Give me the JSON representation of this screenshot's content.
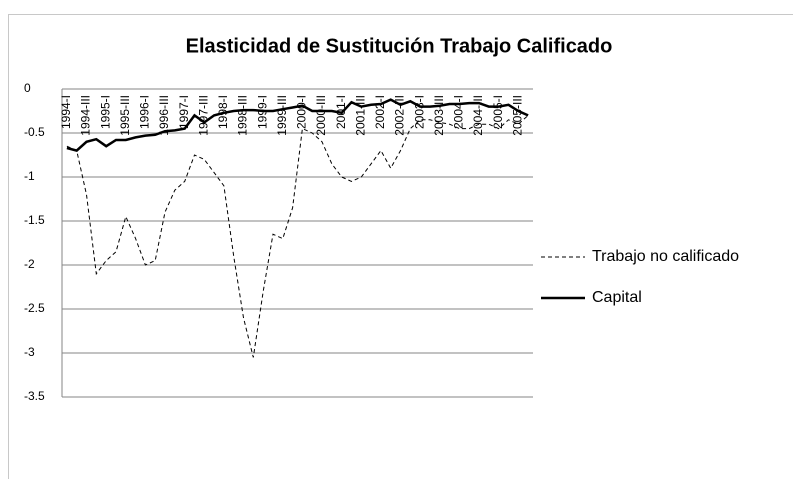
{
  "chart_data": {
    "type": "line",
    "title": "Elasticidad de Sustitución Trabajo Calificado",
    "categories": [
      "1994-I",
      null,
      "1994-III",
      null,
      "1995-I",
      null,
      "1995-III",
      null,
      "1996-I",
      null,
      "1996-III",
      null,
      "1997-I",
      null,
      "1997-III",
      null,
      "1998-I",
      null,
      "1998-III",
      null,
      "1999-I",
      null,
      "1999-III",
      null,
      "2000-I",
      null,
      "2000-III",
      null,
      "2001-I",
      null,
      "2001-III",
      null,
      "2002-I",
      null,
      "2002-III",
      null,
      "2003-I",
      null,
      "2003-III",
      null,
      "2004-I",
      null,
      "2004-III",
      null,
      "2005-I",
      null,
      "2005-III",
      null
    ],
    "series": [
      {
        "name": "Trabajo no calificado",
        "color": "#000000",
        "style": "dashed",
        "values": [
          -0.65,
          -0.7,
          -1.2,
          -2.1,
          -1.95,
          -1.85,
          -1.45,
          -1.7,
          -2.0,
          -1.95,
          -1.4,
          -1.15,
          -1.05,
          -0.75,
          -0.8,
          -0.95,
          -1.1,
          -1.9,
          -2.6,
          -3.05,
          -2.3,
          -1.65,
          -1.7,
          -1.35,
          -0.45,
          -0.5,
          -0.6,
          -0.85,
          -1.0,
          -1.05,
          -1.0,
          -0.85,
          -0.7,
          -0.9,
          -0.7,
          -0.45,
          -0.35,
          -0.35,
          -0.38,
          -0.4,
          -0.45,
          -0.45,
          -0.4,
          -0.4,
          -0.45,
          -0.35,
          -0.4,
          -0.3
        ]
      },
      {
        "name": "Capital",
        "color": "#000000",
        "style": "solid",
        "values": [
          -0.67,
          -0.7,
          -0.6,
          -0.57,
          -0.65,
          -0.58,
          -0.58,
          -0.55,
          -0.53,
          -0.52,
          -0.48,
          -0.47,
          -0.45,
          -0.3,
          -0.38,
          -0.3,
          -0.27,
          -0.25,
          -0.24,
          -0.24,
          -0.25,
          -0.25,
          -0.23,
          -0.21,
          -0.19,
          -0.25,
          -0.25,
          -0.25,
          -0.27,
          -0.15,
          -0.2,
          -0.18,
          -0.17,
          -0.12,
          -0.18,
          -0.14,
          -0.2,
          -0.2,
          -0.19,
          -0.17,
          -0.17,
          -0.16,
          -0.16,
          -0.2,
          -0.2,
          -0.18,
          -0.25,
          -0.3
        ]
      }
    ],
    "ylim": [
      -3.5,
      0
    ],
    "yticks": [
      0,
      -0.5,
      -1,
      -1.5,
      -2,
      -2.5,
      -3,
      -3.5
    ],
    "grid": true,
    "grid_color": "#868686",
    "legend": "right"
  }
}
